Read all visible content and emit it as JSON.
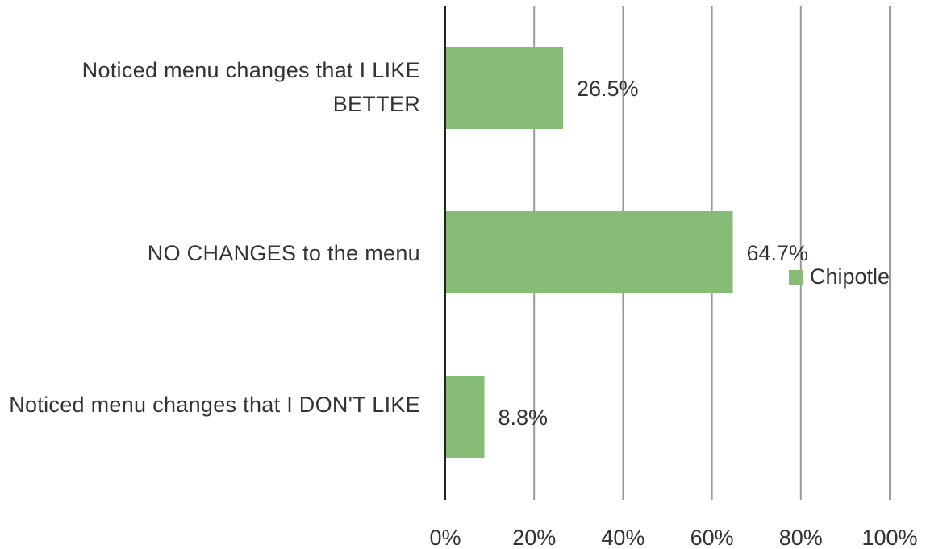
{
  "chart_data": {
    "type": "bar",
    "orientation": "horizontal",
    "categories": [
      "Noticed menu changes that I LIKE BETTER",
      "NO CHANGES to the menu",
      "Noticed menu changes that I DON'T LIKE"
    ],
    "series": [
      {
        "name": "Chipotle",
        "values": [
          26.5,
          64.7,
          8.8
        ],
        "color": "#86bc76"
      }
    ],
    "data_labels": [
      "26.5%",
      "64.7%",
      "8.8%"
    ],
    "x_ticks": [
      "0%",
      "20%",
      "40%",
      "60%",
      "80%",
      "100%"
    ],
    "xlim": [
      0,
      100
    ],
    "grid": true,
    "legend": "right"
  }
}
